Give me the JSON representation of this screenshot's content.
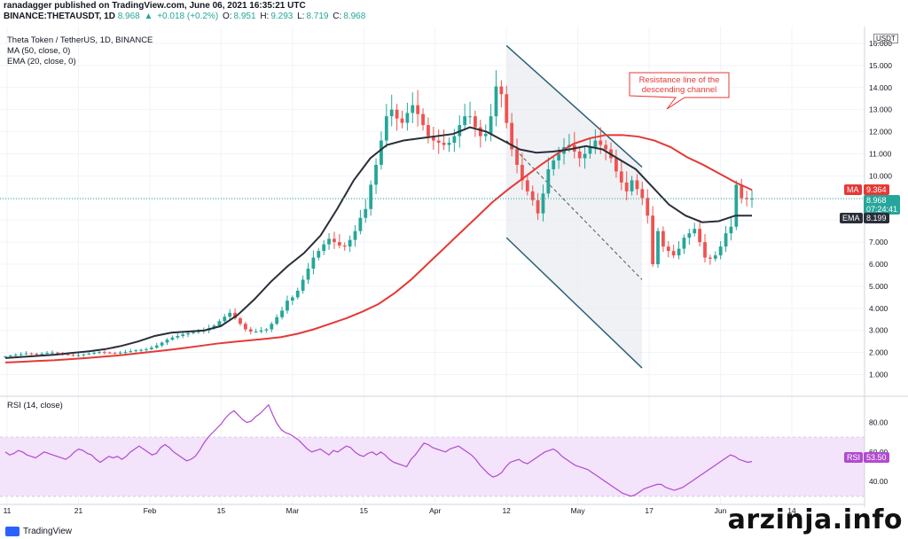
{
  "header": {
    "publisher_line": "ranadagger published on TradingView.com, June 06, 2021 16:35:21 UTC",
    "symbol": "BINANCE:THETAUSDT, 1D",
    "last": "8.968",
    "change": "+0.018 (+0.2%)",
    "o_label": "O:",
    "o": "8.951",
    "h_label": "H:",
    "h": "9.293",
    "l_label": "L:",
    "l": "8.719",
    "c_label": "C:",
    "c": "8.968"
  },
  "legend": {
    "title": "Theta Token / TetherUS, 1D, BINANCE",
    "ma": "MA (50, close, 0)",
    "ema": "EMA (20, close, 0)",
    "rsi": "RSI (14, close)"
  },
  "annotation": {
    "line1": "Resistance line of the",
    "line2": "descending channel"
  },
  "price_tags": {
    "ma_label": "MA",
    "ma_value": "9.364",
    "last_value": "8.968",
    "countdown": "07:24:41",
    "ema_label": "EMA",
    "ema_value": "8.199",
    "rsi_label": "RSI",
    "rsi_value": "53.50",
    "currency": "USDT"
  },
  "footer": {
    "brand": "TradingView",
    "watermark": "arzinja.info"
  },
  "colors": {
    "up": "#26a69a",
    "down": "#ef5350",
    "ma": "#e53935",
    "ema": "#2a2e39",
    "channel": "#2b5f75",
    "rsi": "#b04bcf",
    "rsi_band": "#f3e3fb"
  },
  "chart_data": {
    "type": "candlestick",
    "price_axis": {
      "ticks": [
        1.0,
        2.0,
        3.0,
        4.0,
        5.0,
        6.0,
        7.0,
        8.0,
        9.0,
        10.0,
        11.0,
        12.0,
        13.0,
        14.0,
        15.0,
        16.0
      ],
      "tick_labels": [
        "1.000",
        "2.000",
        "3.000",
        "4.000",
        "5.000",
        "6.000",
        "7.000",
        "8.000",
        "9.000",
        "10.000",
        "11.000",
        "12.000",
        "13.000",
        "14.000",
        "15.000",
        "16.000"
      ]
    },
    "rsi_axis": {
      "ticks": [
        40,
        60,
        80
      ],
      "tick_labels": [
        "40.00",
        "60.00",
        "80.00"
      ],
      "band": [
        30,
        70
      ],
      "ylim": [
        25,
        96
      ]
    },
    "x_axis": {
      "tick_labels": [
        "11",
        "21",
        "Feb",
        "15",
        "Mar",
        "15",
        "Apr",
        "12",
        "May",
        "17",
        "Jun",
        "14"
      ]
    },
    "price_series": [
      1.82,
      1.86,
      1.9,
      1.93,
      1.96,
      1.94,
      1.92,
      1.95,
      1.98,
      2.0,
      1.97,
      1.93,
      1.89,
      1.87,
      1.88,
      1.92,
      1.95,
      1.99,
      2.02,
      2.0,
      1.98,
      1.97,
      2.0,
      2.03,
      2.06,
      2.1,
      2.12,
      2.15,
      2.22,
      2.32,
      2.45,
      2.58,
      2.68,
      2.75,
      2.82,
      2.88,
      2.93,
      2.96,
      3.0,
      3.1,
      3.22,
      3.42,
      3.62,
      3.8,
      3.55,
      3.3,
      3.05,
      2.95,
      2.95,
      3.0,
      3.05,
      3.3,
      3.6,
      3.9,
      4.35,
      4.5,
      4.8,
      5.3,
      5.8,
      6.3,
      6.6,
      6.9,
      7.15,
      7.0,
      6.85,
      6.8,
      7.1,
      7.5,
      8.1,
      8.5,
      9.6,
      10.5,
      11.6,
      12.7,
      13.0,
      12.6,
      12.4,
      12.85,
      13.2,
      12.8,
      12.3,
      11.8,
      11.6,
      11.5,
      11.4,
      11.5,
      11.8,
      12.3,
      12.7,
      12.7,
      12.2,
      11.8,
      11.9,
      12.7,
      14.05,
      13.7,
      12.4,
      11.2,
      10.5,
      9.8,
      9.3,
      8.9,
      8.3,
      9.2,
      10.3,
      10.7,
      11.0,
      11.3,
      11.4,
      11.1,
      10.8,
      11.0,
      11.3,
      11.6,
      11.4,
      11.2,
      10.8,
      10.2,
      9.7,
      9.3,
      9.8,
      9.4,
      9.0,
      8.2,
      6.0,
      7.5,
      6.8,
      6.6,
      6.4,
      6.7,
      7.2,
      7.4,
      7.6,
      7.0,
      6.3,
      6.25,
      6.4,
      6.8,
      7.4,
      7.7,
      9.6,
      9.0,
      8.95,
      8.968
    ],
    "ma50": [
      1.55,
      1.58,
      1.62,
      1.65,
      1.7,
      1.75,
      1.81,
      1.87,
      1.95,
      2.03,
      2.11,
      2.2,
      2.3,
      2.4,
      2.48,
      2.55,
      2.62,
      2.7,
      2.85,
      3.05,
      3.3,
      3.55,
      3.85,
      4.2,
      4.7,
      5.3,
      6.0,
      6.7,
      7.4,
      8.1,
      8.8,
      9.4,
      9.95,
      10.5,
      11.0,
      11.45,
      11.7,
      11.85,
      11.85,
      11.78,
      11.6,
      11.3,
      10.85,
      10.5,
      10.1,
      9.7,
      9.364
    ],
    "ema20": [
      1.75,
      1.8,
      1.85,
      1.9,
      1.98,
      2.05,
      2.15,
      2.3,
      2.5,
      2.75,
      2.9,
      2.95,
      3.0,
      3.2,
      3.7,
      4.4,
      5.2,
      5.9,
      6.5,
      7.3,
      8.5,
      9.8,
      10.8,
      11.4,
      11.6,
      11.7,
      11.8,
      11.9,
      12.2,
      12.0,
      11.6,
      11.2,
      11.05,
      11.1,
      11.2,
      11.35,
      11.2,
      10.75,
      10.3,
      9.5,
      8.7,
      8.2,
      7.9,
      7.95,
      8.2,
      8.199
    ],
    "rsi": [
      60,
      58,
      59,
      61,
      60,
      58,
      57,
      56,
      58,
      60,
      59,
      58,
      57,
      56,
      55,
      57,
      60,
      62,
      61,
      59,
      58,
      55,
      53,
      55,
      57,
      56,
      57,
      55,
      57,
      60,
      62,
      64,
      62,
      60,
      58,
      59,
      63,
      65,
      63,
      60,
      58,
      56,
      54,
      55,
      57,
      61,
      66,
      70,
      73,
      76,
      79,
      83,
      86,
      88,
      85,
      82,
      80,
      81,
      84,
      86,
      89,
      92,
      85,
      79,
      75,
      73,
      72,
      70,
      68,
      65,
      62,
      60,
      61,
      62,
      60,
      58,
      61,
      60,
      62,
      64,
      63,
      60,
      58,
      57,
      59,
      60,
      58,
      60,
      58,
      55,
      53,
      52,
      51,
      50,
      55,
      58,
      62,
      66,
      65,
      63,
      62,
      61,
      60,
      62,
      63,
      64,
      62,
      60,
      58,
      55,
      51,
      48,
      45,
      43,
      44,
      46,
      50,
      53,
      54,
      55,
      53,
      52,
      54,
      56,
      58,
      60,
      61,
      62,
      60,
      57,
      55,
      53,
      51,
      50,
      49,
      48,
      46,
      44,
      42,
      40,
      38,
      36,
      34,
      32,
      31,
      30,
      31,
      33,
      35,
      36,
      37,
      38,
      38,
      36,
      35,
      34,
      35,
      36,
      38,
      40,
      42,
      44,
      46,
      48,
      50,
      52,
      54,
      56,
      58,
      57,
      55,
      54,
      53,
      53.5
    ],
    "channel": {
      "upper": [
        [
          12.0,
          15.9
        ],
        [
          13.9,
          10.4
        ]
      ],
      "lower": [
        [
          12.0,
          7.2
        ],
        [
          13.9,
          1.3
        ]
      ],
      "middle": [
        [
          12.0,
          11.6
        ],
        [
          13.9,
          5.3
        ]
      ]
    }
  }
}
